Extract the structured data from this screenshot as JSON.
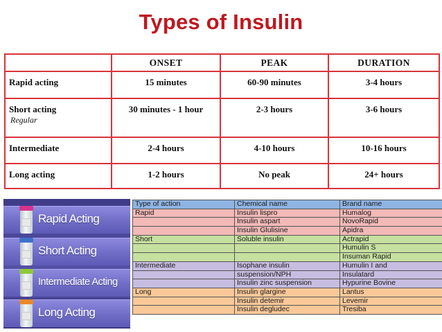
{
  "title": "Types of Insulin",
  "top_table": {
    "headers": [
      "",
      "ONSET",
      "PEAK",
      "DURATION"
    ],
    "rows": [
      {
        "type": "Rapid acting",
        "sub": "",
        "onset": "15 minutes",
        "peak": "60-90 minutes",
        "duration": "3-4 hours"
      },
      {
        "type": "Short acting",
        "sub": "Regular",
        "onset": "30 minutes - 1 hour",
        "peak": "2-3 hours",
        "duration": "3-6 hours"
      },
      {
        "type": "Intermediate",
        "sub": "",
        "onset": "2-4 hours",
        "peak": "4-10 hours",
        "duration": "10-16 hours"
      },
      {
        "type": "Long acting",
        "sub": "",
        "onset": "1-2 hours",
        "peak": "No peak",
        "duration": "24+ hours"
      }
    ]
  },
  "banner": {
    "items": [
      "Rapid Acting",
      "Short Acting",
      "Intermediate Acting",
      "Long Acting"
    ],
    "cap_colors": [
      "#d8348c",
      "#3f73c8",
      "#8fc93a",
      "#e98a2a"
    ]
  },
  "bottom_table": {
    "headers": [
      "Type of action",
      "Chemical name",
      "Brand name"
    ],
    "rows": [
      [
        "Rapid",
        "Insulin lispro",
        "Humalog"
      ],
      [
        "",
        "Insulin aspart",
        "NovoRapid"
      ],
      [
        "",
        "Insulin Glulisine",
        "Apidra"
      ],
      [
        "Short",
        "Soluble insulin",
        "Actrapid"
      ],
      [
        "",
        "",
        "Humulin S"
      ],
      [
        "",
        "",
        "Insuman Rapid"
      ],
      [
        "Intermediate",
        "Isophane insulin",
        "Humulin I and"
      ],
      [
        "",
        "suspension/NPH",
        "Insulatard"
      ],
      [
        "",
        "Insulin zinc suspension",
        "Hypurine Bovine"
      ],
      [
        "Long",
        "Insulin glargine",
        "Lantus"
      ],
      [
        "",
        "Insulin detemir",
        "Levemir"
      ],
      [
        "",
        "Insulin degludec",
        "Tresiba"
      ]
    ]
  }
}
